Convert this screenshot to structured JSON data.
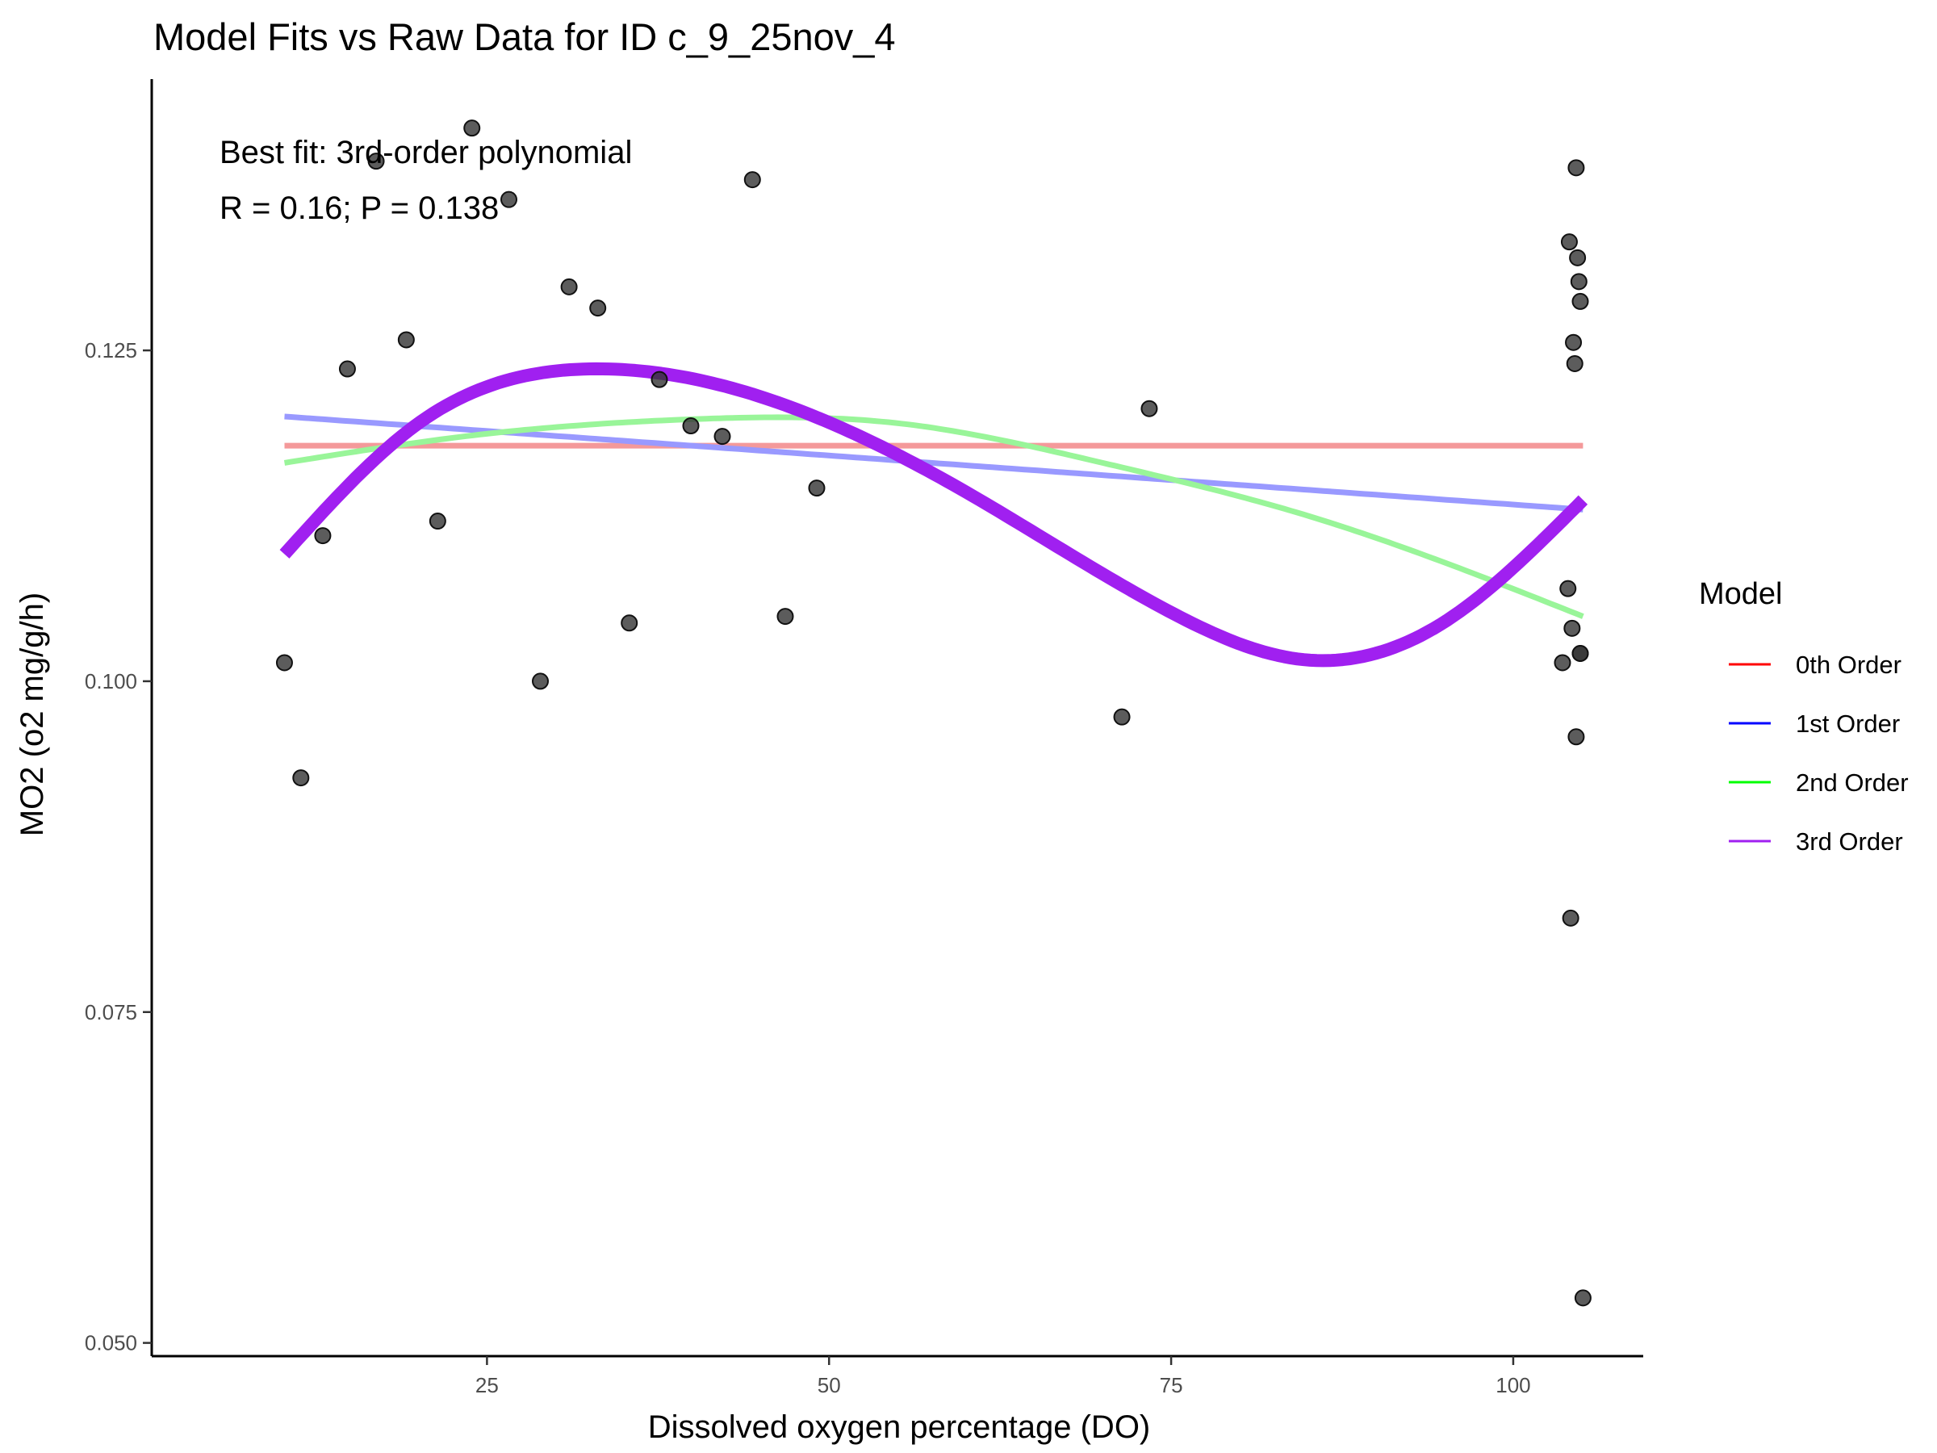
{
  "chart_data": {
    "type": "scatter",
    "title": "Model Fits vs Raw Data for ID c_9_25nov_4",
    "xlabel": "Dissolved oxygen percentage (DO)",
    "ylabel": "MO2 (o2 mg/g/h)",
    "xlim": [
      0.5,
      109.5
    ],
    "ylim": [
      0.049,
      0.1455
    ],
    "x_ticks": [
      25,
      50,
      75,
      100
    ],
    "y_ticks": [
      0.05,
      0.075,
      0.1,
      0.125
    ],
    "x_tick_labels": [
      "25",
      "50",
      "75",
      "100"
    ],
    "y_tick_labels": [
      "0.050",
      "0.075",
      "0.100",
      "0.125"
    ],
    "grid": false,
    "annotations": [
      "Best fit: 3rd-order polynomial",
      "R = 0.16; P = 0.138"
    ],
    "legend": {
      "title": "Model",
      "position": "right",
      "entries": [
        {
          "label": "0th Order",
          "color": "#ff0000"
        },
        {
          "label": "1st Order",
          "color": "#0000ff"
        },
        {
          "label": "2nd Order",
          "color": "#00ff00"
        },
        {
          "label": "3rd Order",
          "color": "#a020f0"
        }
      ]
    },
    "points": {
      "color": "#333333",
      "x": [
        10.2,
        11.4,
        13.0,
        14.8,
        16.9,
        19.1,
        21.4,
        23.9,
        26.6,
        28.9,
        31.0,
        33.1,
        35.4,
        37.6,
        39.9,
        42.2,
        44.4,
        46.8,
        49.1,
        71.4,
        73.4,
        103.6,
        104.0,
        104.1,
        104.2,
        104.3,
        104.4,
        104.5,
        104.6,
        104.6,
        104.7,
        104.8,
        104.9,
        104.9,
        104.9,
        105.1
      ],
      "y": [
        0.1014,
        0.0927,
        0.111,
        0.1236,
        0.1393,
        0.1258,
        0.1121,
        0.1418,
        0.1364,
        0.1,
        0.1298,
        0.1282,
        0.1044,
        0.1228,
        0.1193,
        0.1185,
        0.1379,
        0.1049,
        0.1146,
        0.0973,
        0.1206,
        0.1014,
        0.107,
        0.1332,
        0.0821,
        0.104,
        0.1256,
        0.124,
        0.0958,
        0.1388,
        0.132,
        0.1302,
        0.1287,
        0.1021,
        0.1021,
        0.0534
      ]
    },
    "series": [
      {
        "name": "0th Order",
        "color": "#f4999a",
        "x_range": [
          10.2,
          105.1
        ],
        "coefficients": [
          0.1178
        ]
      },
      {
        "name": "1st Order",
        "color": "#9999ff",
        "x_range": [
          10.2,
          105.1
        ],
        "coefficients": [
          0.12076,
          -7.41e-05
        ]
      },
      {
        "name": "2nd Order",
        "color": "#99f599",
        "x_range": [
          10.2,
          105.1
        ],
        "x_values": [
          10.2,
          25,
          40,
          55,
          70,
          85,
          105.1
        ],
        "y_values": [
          0.1165,
          0.1187,
          0.1198,
          0.1195,
          0.1165,
          0.1125,
          0.1049
        ]
      },
      {
        "name": "3rd Order",
        "color": "#a020f0",
        "x_range": [
          10.2,
          105.1
        ],
        "x_values": [
          10.2,
          20,
          32.5,
          45,
          60,
          75,
          85,
          95,
          105.1
        ],
        "y_values": [
          0.1096,
          0.1195,
          0.1236,
          0.1215,
          0.1143,
          0.1052,
          0.1016,
          0.1045,
          0.1137
        ]
      }
    ]
  }
}
